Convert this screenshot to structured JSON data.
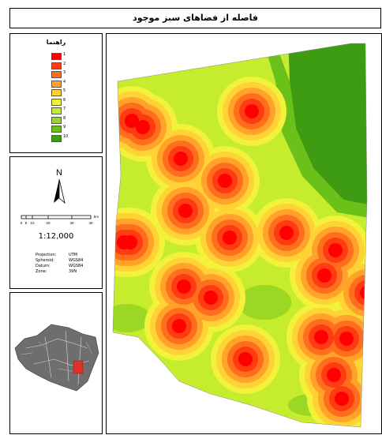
{
  "title": "فاصله از فضاهای سبز موجود",
  "legend": {
    "title": "راهنما",
    "items": [
      {
        "label": "1",
        "color": "#ff0000"
      },
      {
        "label": "2",
        "color": "#ff3b12"
      },
      {
        "label": "3",
        "color": "#ff6e1c"
      },
      {
        "label": "4",
        "color": "#ffa32a"
      },
      {
        "label": "5",
        "color": "#ffd235"
      },
      {
        "label": "6",
        "color": "#f2f23a"
      },
      {
        "label": "7",
        "color": "#c6ec2e"
      },
      {
        "label": "8",
        "color": "#9bd724"
      },
      {
        "label": "9",
        "color": "#6cc01a"
      },
      {
        "label": "10",
        "color": "#3d9c12"
      }
    ]
  },
  "north_arrow": {
    "label": "N"
  },
  "scale_bar": {
    "ticks": [
      "0",
      "5",
      "10",
      "20",
      "30",
      "40"
    ],
    "unit": "km"
  },
  "scale_text": "1:12,000",
  "projection": [
    {
      "key": "Projection:",
      "value": "UTM"
    },
    {
      "key": "Spheroid:",
      "value": "WGS84"
    },
    {
      "key": "Datum:",
      "value": "WGS84"
    },
    {
      "key": "Zone:",
      "value": "39N"
    }
  ],
  "inset_map": {
    "highlight_color": "#e0302a"
  },
  "map": {
    "colors": [
      "#ff0000",
      "#ff3b12",
      "#ff6e1c",
      "#ffa32a",
      "#ffd235",
      "#f2f23a",
      "#c6ec2e",
      "#9bd724",
      "#6cc01a",
      "#3d9c12"
    ]
  }
}
